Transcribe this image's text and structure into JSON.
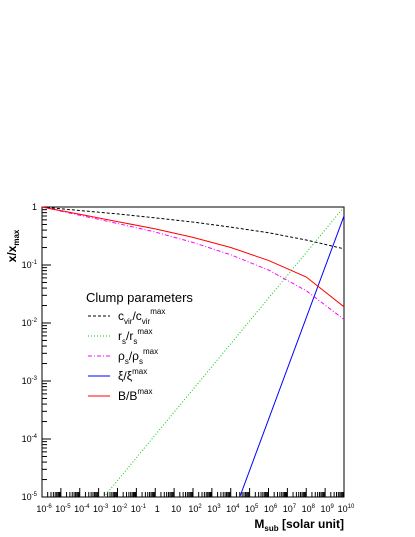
{
  "chart_data": {
    "type": "line",
    "title": "",
    "xlabel": {
      "main": "M",
      "sub": "sub",
      "rest": " [solar unit]"
    },
    "ylabel": {
      "main": "x/x",
      "sub": "max"
    },
    "xscale": "log",
    "yscale": "log",
    "xlim": [
      1e-06,
      10000000000.0
    ],
    "ylim": [
      1e-05,
      1
    ],
    "x_tick_labels": [
      {
        "base": "10",
        "exp": "-6"
      },
      {
        "base": "10",
        "exp": "-5"
      },
      {
        "base": "10",
        "exp": "-4"
      },
      {
        "base": "10",
        "exp": "-3"
      },
      {
        "base": "10",
        "exp": "-2"
      },
      {
        "base": "10",
        "exp": "-1"
      },
      {
        "base": "1",
        "exp": ""
      },
      {
        "base": "10",
        "exp": ""
      },
      {
        "base": "10",
        "exp": "2"
      },
      {
        "base": "10",
        "exp": "3"
      },
      {
        "base": "10",
        "exp": "4"
      },
      {
        "base": "10",
        "exp": "5"
      },
      {
        "base": "10",
        "exp": "6"
      },
      {
        "base": "10",
        "exp": "7"
      },
      {
        "base": "10",
        "exp": "8"
      },
      {
        "base": "10",
        "exp": "9"
      },
      {
        "base": "10",
        "exp": "10"
      }
    ],
    "y_tick_labels": [
      {
        "base": "10",
        "exp": "-5"
      },
      {
        "base": "10",
        "exp": "-4"
      },
      {
        "base": "10",
        "exp": "-3"
      },
      {
        "base": "10",
        "exp": "-2"
      },
      {
        "base": "10",
        "exp": "-1"
      },
      {
        "base": "1",
        "exp": ""
      }
    ],
    "grid": false,
    "legend": {
      "title": "Clump parameters",
      "position": "middle-left",
      "entries": [
        {
          "main": "c",
          "sub": "vir",
          "mid": "/c",
          "sub2": "vir",
          "sup2": "max"
        },
        {
          "main": "r",
          "sub": "s",
          "mid": "/r",
          "sub2": "s",
          "sup2": "max"
        },
        {
          "main": "ρ",
          "sub": "s",
          "mid": "/ρ",
          "sub2": "s",
          "sup2": "max"
        },
        {
          "main": "ξ",
          "sub": "",
          "mid": "/ξ",
          "sub2": "",
          "sup2": "max"
        },
        {
          "main": "B/B",
          "sub": "",
          "mid": "",
          "sub2": "",
          "sup2": "max"
        }
      ]
    },
    "series": [
      {
        "color": "#000000",
        "style": "dashed",
        "x": [
          1e-06,
          0.0001,
          0.01,
          1,
          100,
          10000.0,
          1000000.0,
          100000000.0,
          10000000000.0
        ],
        "y": [
          1.0,
          0.87,
          0.76,
          0.65,
          0.55,
          0.45,
          0.36,
          0.27,
          0.19
        ]
      },
      {
        "color": "#00cc00",
        "style": "dotted",
        "x": [
          0.0019,
          10000000000.0
        ],
        "y": [
          1e-05,
          1.0
        ]
      },
      {
        "color": "#ff00ff",
        "style": "dashdot",
        "x": [
          1e-06,
          0.0001,
          0.01,
          1,
          100,
          10000.0,
          1000000.0,
          100000000.0,
          10000000000.0
        ],
        "y": [
          1.0,
          0.72,
          0.52,
          0.37,
          0.245,
          0.15,
          0.082,
          0.036,
          0.0115
        ]
      },
      {
        "color": "#0000ff",
        "style": "solid",
        "x": [
          30000,
          10000000000.0
        ],
        "y": [
          1e-05,
          0.7
        ]
      },
      {
        "color": "#ff0000",
        "style": "solid",
        "x": [
          1e-06,
          0.0001,
          0.01,
          1,
          100,
          10000.0,
          1000000.0,
          100000000.0,
          10000000000.0
        ],
        "y": [
          1.0,
          0.75,
          0.56,
          0.42,
          0.3,
          0.2,
          0.12,
          0.062,
          0.019
        ]
      }
    ]
  }
}
